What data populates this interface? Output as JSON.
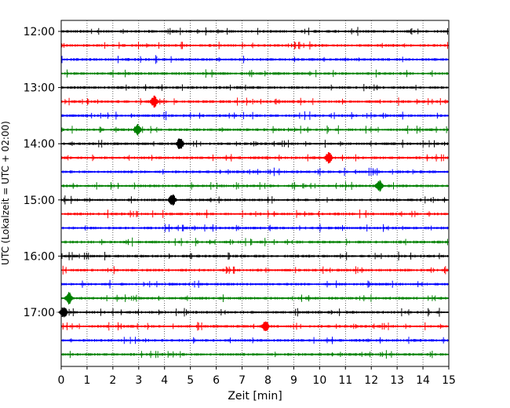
{
  "chart_data": {
    "type": "line",
    "title": "",
    "xlabel": "Zeit  [min]",
    "ylabel": "UTC (Lokalzeit = UTC + 02:00)",
    "xlim": [
      0,
      15
    ],
    "x_ticks": [
      "0",
      "1",
      "2",
      "3",
      "4",
      "5",
      "6",
      "7",
      "8",
      "9",
      "10",
      "11",
      "12",
      "13",
      "14",
      "15"
    ],
    "y_ticks": [
      "12:00",
      "13:00",
      "14:00",
      "15:00",
      "16:00",
      "17:00"
    ],
    "trace_interval_minutes": 15,
    "first_trace": "12:00",
    "last_trace": "17:45",
    "grid": "vertical dotted lines at each minute",
    "colors": [
      "#000000",
      "#ff0000",
      "#0000ff",
      "#008000"
    ],
    "traces": [
      {
        "start": "12:00",
        "color": "#000000"
      },
      {
        "start": "12:15",
        "color": "#ff0000"
      },
      {
        "start": "12:30",
        "color": "#0000ff"
      },
      {
        "start": "12:45",
        "color": "#008000"
      },
      {
        "start": "13:00",
        "color": "#000000"
      },
      {
        "start": "13:15",
        "color": "#ff0000",
        "event_min": 3.6
      },
      {
        "start": "13:30",
        "color": "#0000ff"
      },
      {
        "start": "13:45",
        "color": "#008000",
        "event_min": 2.95
      },
      {
        "start": "14:00",
        "color": "#000000",
        "event_min": 4.6
      },
      {
        "start": "14:15",
        "color": "#ff0000",
        "event_min": 10.35
      },
      {
        "start": "14:30",
        "color": "#0000ff"
      },
      {
        "start": "14:45",
        "color": "#008000",
        "event_min": 12.3
      },
      {
        "start": "15:00",
        "color": "#000000",
        "event_min": 4.3
      },
      {
        "start": "15:15",
        "color": "#ff0000"
      },
      {
        "start": "15:30",
        "color": "#0000ff"
      },
      {
        "start": "15:45",
        "color": "#008000"
      },
      {
        "start": "16:00",
        "color": "#000000"
      },
      {
        "start": "16:15",
        "color": "#ff0000"
      },
      {
        "start": "16:30",
        "color": "#0000ff"
      },
      {
        "start": "16:45",
        "color": "#008000",
        "event_min": 0.3
      },
      {
        "start": "17:00",
        "color": "#000000",
        "event_min": 0.1
      },
      {
        "start": "17:15",
        "color": "#ff0000",
        "event_min": 7.9
      },
      {
        "start": "17:30",
        "color": "#0000ff"
      },
      {
        "start": "17:45",
        "color": "#008000"
      }
    ]
  }
}
